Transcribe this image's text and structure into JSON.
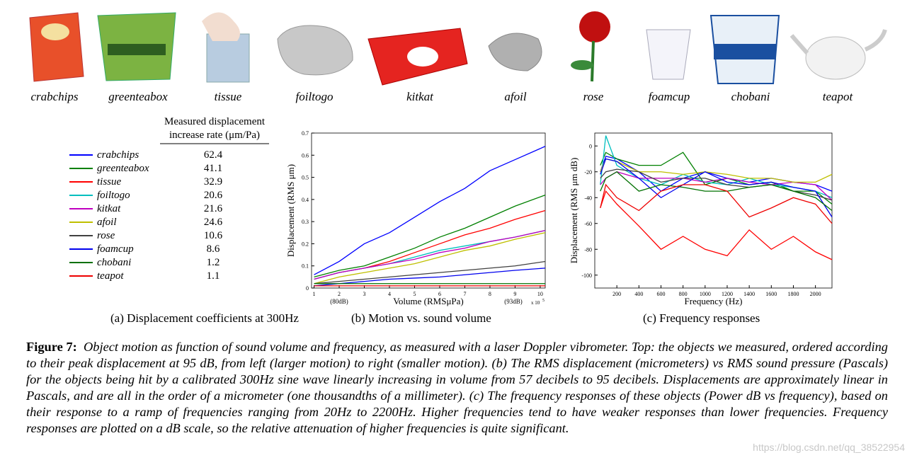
{
  "objects": [
    "crabchips",
    "greenteabox",
    "tissue",
    "foiltogo",
    "kitkat",
    "afoil",
    "rose",
    "foamcup",
    "chobani",
    "teapot"
  ],
  "table": {
    "header": [
      "Measured displacement",
      "increase rate (μm/Pa)"
    ],
    "values": [
      "62.4",
      "41.1",
      "32.9",
      "20.6",
      "21.6",
      "24.6",
      "10.6",
      "8.6",
      "1.2",
      "1.1"
    ]
  },
  "chart_data": [
    {
      "type": "line",
      "xlabel": "Volume (RMSμPa)",
      "ylabel": "Displacement (RMS μm)",
      "x_multiplier": "x 10",
      "x_multiplier_exp": "5",
      "annotations": [
        "(80dB)",
        "(93dB)"
      ],
      "x": [
        1,
        2,
        3,
        4,
        5,
        6,
        7,
        8,
        9,
        10.2
      ],
      "xlim": [
        0.9,
        10.2
      ],
      "xticks": [
        1,
        2,
        3,
        4,
        5,
        6,
        7,
        8,
        9,
        10
      ],
      "ylim": [
        0,
        0.7
      ],
      "yticks": [
        0,
        0.1,
        0.2,
        0.3,
        0.4,
        0.5,
        0.6,
        0.7
      ],
      "series": [
        {
          "name": "crabchips",
          "color": "#0000ff",
          "values": [
            0.06,
            0.12,
            0.2,
            0.25,
            0.32,
            0.39,
            0.45,
            0.53,
            0.58,
            0.64
          ]
        },
        {
          "name": "greenteabox",
          "color": "#008000",
          "values": [
            0.05,
            0.08,
            0.1,
            0.14,
            0.18,
            0.23,
            0.27,
            0.32,
            0.37,
            0.42
          ]
        },
        {
          "name": "tissue",
          "color": "#ff0000",
          "values": [
            0.04,
            0.07,
            0.09,
            0.12,
            0.16,
            0.2,
            0.24,
            0.27,
            0.31,
            0.35
          ]
        },
        {
          "name": "foiltogo",
          "color": "#00bfbf",
          "values": [
            0.04,
            0.07,
            0.09,
            0.11,
            0.14,
            0.17,
            0.19,
            0.21,
            0.23,
            0.26
          ]
        },
        {
          "name": "kitkat",
          "color": "#bf00bf",
          "values": [
            0.04,
            0.07,
            0.09,
            0.11,
            0.13,
            0.16,
            0.18,
            0.21,
            0.23,
            0.26
          ]
        },
        {
          "name": "afoil",
          "color": "#bfbf00",
          "values": [
            0.02,
            0.05,
            0.07,
            0.09,
            0.11,
            0.14,
            0.17,
            0.19,
            0.22,
            0.25
          ]
        },
        {
          "name": "rose",
          "color": "#404040",
          "values": [
            0.02,
            0.03,
            0.04,
            0.05,
            0.06,
            0.07,
            0.08,
            0.09,
            0.1,
            0.12
          ]
        },
        {
          "name": "foamcup",
          "color": "#0000ee",
          "values": [
            0.01,
            0.02,
            0.03,
            0.04,
            0.045,
            0.05,
            0.06,
            0.07,
            0.08,
            0.09
          ]
        },
        {
          "name": "chobani",
          "color": "#007000",
          "values": [
            0.02,
            0.02,
            0.02,
            0.02,
            0.02,
            0.02,
            0.02,
            0.02,
            0.02,
            0.02
          ]
        },
        {
          "name": "teapot",
          "color": "#ee0000",
          "values": [
            0.01,
            0.01,
            0.01,
            0.01,
            0.01,
            0.01,
            0.01,
            0.01,
            0.01,
            0.01
          ]
        }
      ]
    },
    {
      "type": "line",
      "xlabel": "Frequency (Hz)",
      "ylabel": "Displacement (RMS μm dB)",
      "x": [
        50,
        100,
        200,
        400,
        600,
        800,
        1000,
        1200,
        1400,
        1600,
        1800,
        2000,
        2150
      ],
      "xlim": [
        0,
        2150
      ],
      "xticks": [
        200,
        400,
        600,
        800,
        1000,
        1200,
        1400,
        1600,
        1800,
        2000
      ],
      "ylim": [
        -110,
        10
      ],
      "yticks": [
        0,
        -20,
        -40,
        -60,
        -80,
        -100
      ],
      "series": [
        {
          "color": "#0000ff",
          "values": [
            -20,
            -8,
            -10,
            -20,
            -35,
            -25,
            -20,
            -25,
            -28,
            -25,
            -28,
            -30,
            -35
          ]
        },
        {
          "color": "#008000",
          "values": [
            -15,
            -5,
            -10,
            -15,
            -15,
            -5,
            -30,
            -25,
            -30,
            -28,
            -35,
            -35,
            -45
          ]
        },
        {
          "color": "#ff0000",
          "values": [
            -48,
            -35,
            -45,
            -62,
            -80,
            -70,
            -80,
            -85,
            -65,
            -80,
            -70,
            -82,
            -88
          ]
        },
        {
          "color": "#00bfbf",
          "values": [
            -30,
            8,
            -15,
            -25,
            -30,
            -22,
            -28,
            -30,
            -25,
            -30,
            -32,
            -35,
            -40
          ]
        },
        {
          "color": "#bf00bf",
          "values": [
            -30,
            -25,
            -20,
            -25,
            -25,
            -25,
            -28,
            -25,
            -28,
            -30,
            -28,
            -30,
            -42
          ]
        },
        {
          "color": "#bfbf00",
          "values": [
            -20,
            -10,
            -12,
            -20,
            -20,
            -22,
            -20,
            -22,
            -25,
            -25,
            -28,
            -28,
            -22
          ]
        },
        {
          "color": "#404040",
          "values": [
            -25,
            -20,
            -18,
            -20,
            -28,
            -25,
            -25,
            -30,
            -32,
            -30,
            -35,
            -38,
            -42
          ]
        },
        {
          "color": "#0000ee",
          "values": [
            -22,
            -10,
            -12,
            -25,
            -40,
            -30,
            -20,
            -28,
            -30,
            -28,
            -32,
            -35,
            -55
          ]
        },
        {
          "color": "#007000",
          "values": [
            -35,
            -25,
            -20,
            -35,
            -30,
            -32,
            -35,
            -35,
            -32,
            -30,
            -35,
            -40,
            -50
          ]
        },
        {
          "color": "#ee0000",
          "values": [
            -48,
            -30,
            -40,
            -50,
            -35,
            -30,
            -30,
            -35,
            -55,
            -48,
            -40,
            -45,
            -60
          ]
        }
      ]
    }
  ],
  "captions": [
    "(a) Displacement coefficients at 300Hz",
    "(b) Motion vs. sound volume",
    "(c) Frequency responses"
  ],
  "figure_caption": {
    "label": "Figure 7:",
    "text": "Object motion as function of sound volume and frequency, as measured with a laser Doppler vibrometer. Top: the objects we measured, ordered according to their peak displacement at 95 dB, from left (larger motion) to right (smaller motion). (b) The RMS displacement (micrometers) vs RMS sound pressure (Pascals) for the objects being hit by a calibrated 300Hz sine wave linearly increasing in volume from 57 decibels to 95 decibels. Displacements are approximately linear in Pascals, and are all in the order of a micrometer (one thousandths of a millimeter). (c) The frequency responses of these objects (Power dB vs frequency), based on their response to a ramp of frequencies ranging from 20Hz to 2200Hz. Higher frequencies tend to have weaker responses than lower frequencies. Frequency responses are plotted on a dB scale, so the relative attenuation of higher frequencies is quite significant."
  },
  "watermark": "https://blog.csdn.net/qq_38522954"
}
